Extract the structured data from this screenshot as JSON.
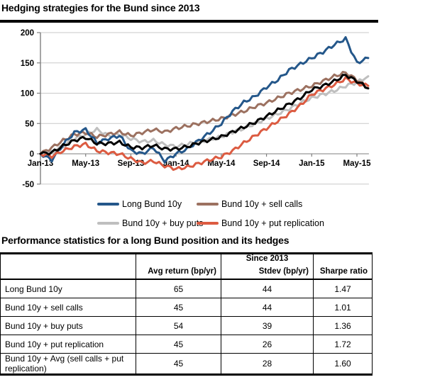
{
  "page": {
    "chart_title": "Hedging strategies for the Bund since 2013",
    "table_title": "Performance statistics for a long Bund position and its hedges"
  },
  "chart_data": {
    "type": "line",
    "title": "Hedging strategies for the Bund since 2013",
    "x_unit": "monthly, Jan-2013 through Jun-2015",
    "x_tick_labels": [
      "Jan-13",
      "May-13",
      "Sep-13",
      "Jan-14",
      "May-14",
      "Sep-14",
      "Jan-15",
      "May-15"
    ],
    "ylabel": "",
    "ylim": [
      -50,
      200
    ],
    "yticks": [
      200,
      150,
      100,
      50,
      0,
      -50
    ],
    "grid": true,
    "legend_position": "bottom",
    "axis_color": "#7f7f7f",
    "grid_color": "#c9c9c9",
    "series": [
      {
        "name": "Long Bund 10y",
        "color": "#24578A",
        "in_legend": true,
        "values": [
          0,
          -10,
          15,
          35,
          40,
          18,
          25,
          30,
          5,
          0,
          10,
          -12,
          0,
          8,
          22,
          35,
          50,
          70,
          85,
          95,
          110,
          122,
          138,
          148,
          158,
          168,
          180,
          190,
          150,
          158
        ]
      },
      {
        "name": "Bund 10y + sell calls",
        "color": "#9C7160",
        "in_legend": true,
        "values": [
          0,
          10,
          22,
          32,
          35,
          28,
          32,
          36,
          30,
          35,
          40,
          36,
          42,
          46,
          50,
          54,
          58,
          64,
          70,
          78,
          84,
          92,
          100,
          106,
          112,
          120,
          128,
          134,
          122,
          108
        ]
      },
      {
        "name": "Bund 10y + buy puts",
        "color": "#BFBFBF",
        "in_legend": true,
        "values": [
          0,
          3,
          12,
          25,
          32,
          40,
          30,
          32,
          25,
          20,
          22,
          15,
          12,
          16,
          20,
          24,
          28,
          36,
          42,
          50,
          58,
          66,
          74,
          84,
          92,
          98,
          104,
          112,
          118,
          128
        ]
      },
      {
        "name": "Bund 10y + put replication",
        "color": "#DC5B41",
        "in_legend": true,
        "values": [
          0,
          -4,
          5,
          12,
          16,
          5,
          2,
          0,
          -8,
          -15,
          -12,
          -20,
          -25,
          -22,
          -16,
          -10,
          -5,
          5,
          18,
          30,
          42,
          54,
          66,
          80,
          98,
          106,
          114,
          124,
          116,
          112
        ]
      },
      {
        "name": "Bund 10y + Avg (sell calls + put replication)",
        "color": "#000000",
        "in_legend": false,
        "values": [
          0,
          2,
          13,
          22,
          27,
          17,
          17,
          19,
          11,
          10,
          14,
          8,
          8,
          12,
          18,
          23,
          28,
          36,
          44,
          52,
          62,
          72,
          82,
          92,
          106,
          112,
          120,
          130,
          120,
          108
        ]
      }
    ]
  },
  "legend": {
    "rows": [
      [
        {
          "label": "Long Bund 10y",
          "color": "#24578A"
        },
        {
          "label": "Bund 10y + sell calls",
          "color": "#9C7160"
        }
      ],
      [
        {
          "label": "Bund 10y + buy puts",
          "color": "#BFBFBF"
        },
        {
          "label": "Bund 10y + put replication",
          "color": "#DC5B41"
        }
      ]
    ]
  },
  "table": {
    "group_header": "Since 2013",
    "columns": [
      "",
      "Avg return (bp/yr)",
      "Stdev (bp/yr)",
      "Sharpe ratio"
    ],
    "rows": [
      {
        "label": "Long Bund 10y",
        "avg_return": "65",
        "stdev": "44",
        "sharpe": "1.47"
      },
      {
        "label": "Bund 10y + sell calls",
        "avg_return": "45",
        "stdev": "44",
        "sharpe": "1.01"
      },
      {
        "label": "Bund 10y + buy puts",
        "avg_return": "54",
        "stdev": "39",
        "sharpe": "1.36"
      },
      {
        "label": "Bund 10y + put replication",
        "avg_return": "45",
        "stdev": "26",
        "sharpe": "1.72"
      },
      {
        "label": "Bund 10y + Avg (sell calls + put replication)",
        "avg_return": "45",
        "stdev": "28",
        "sharpe": "1.60"
      }
    ]
  }
}
